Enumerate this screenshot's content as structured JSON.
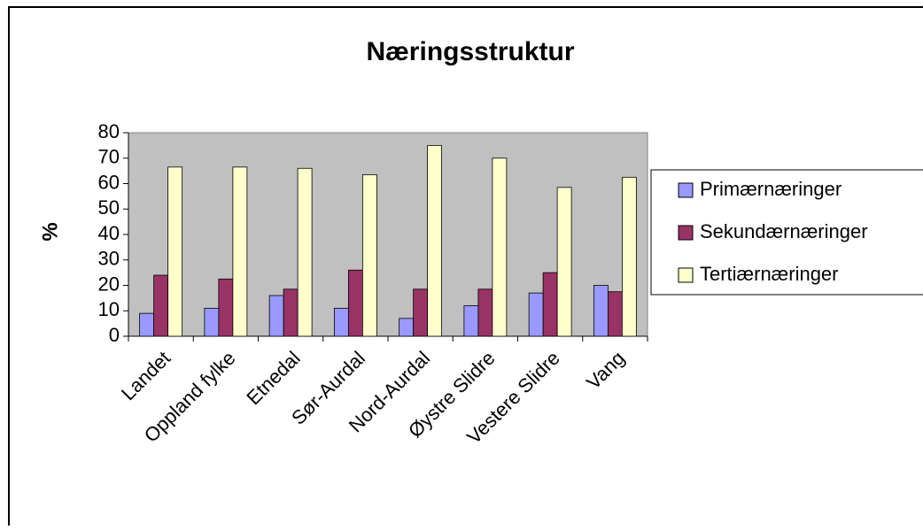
{
  "chart_data": {
    "type": "bar",
    "title": "Næringsstruktur",
    "y_label": "%",
    "categories": [
      "Landet",
      "Oppland fylke",
      "Etnedal",
      "Sør-Aurdal",
      "Nord-Aurdal",
      "Øystre Slidre",
      "Vestere Slidre",
      "Vang"
    ],
    "series": [
      {
        "name": "Primærnæringer",
        "color": "#9999ff",
        "values": [
          9,
          11,
          16,
          11,
          7,
          12,
          17,
          20
        ]
      },
      {
        "name": "Sekundærnæringer",
        "color": "#993366",
        "values": [
          24,
          22.5,
          18.5,
          26,
          18.5,
          18.5,
          25,
          17.5
        ]
      },
      {
        "name": "Tertiærnæringer",
        "color": "#ffffcc",
        "values": [
          66.5,
          66.5,
          66,
          63.5,
          75,
          70,
          58.5,
          62.5
        ]
      }
    ],
    "ylim": [
      0,
      80
    ],
    "yticks": [
      0,
      10,
      20,
      30,
      40,
      50,
      60,
      70,
      80
    ],
    "plot_background": "#c0c0c0",
    "legend": "right"
  }
}
